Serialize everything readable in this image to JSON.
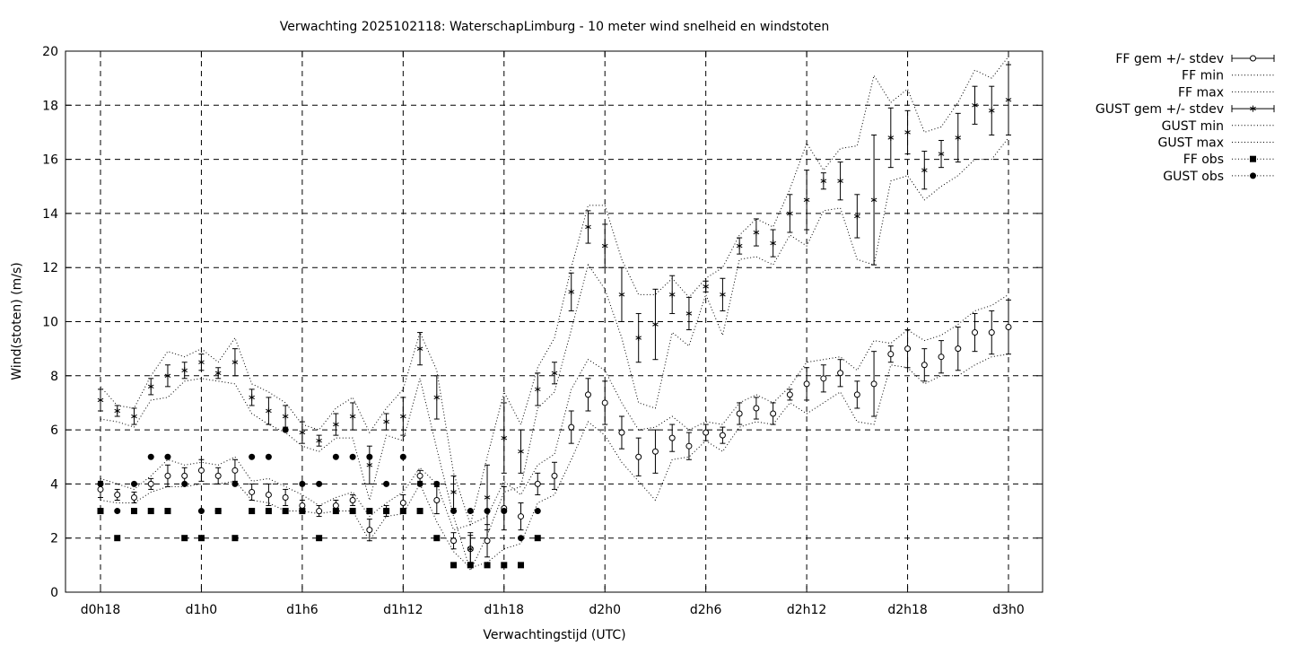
{
  "chart_data": {
    "type": "line",
    "title": "Verwachting 2025102118: WaterschapLimburg - 10 meter wind snelheid en windstoten",
    "xlabel": "Verwachtingstijd (UTC)",
    "ylabel": "Wind(stoten) (m/s)",
    "xlim": [
      18,
      75
    ],
    "ylim": [
      0,
      20
    ],
    "yticks": [
      0,
      2,
      4,
      6,
      8,
      10,
      12,
      14,
      16,
      18,
      20
    ],
    "xticks": [
      {
        "x": 18,
        "label": "d0h18"
      },
      {
        "x": 24,
        "label": "d1h0"
      },
      {
        "x": 30,
        "label": "d1h6"
      },
      {
        "x": 36,
        "label": "d1h12"
      },
      {
        "x": 42,
        "label": "d1h18"
      },
      {
        "x": 48,
        "label": "d2h0"
      },
      {
        "x": 54,
        "label": "d2h6"
      },
      {
        "x": 60,
        "label": "d2h12"
      },
      {
        "x": 66,
        "label": "d2h18"
      },
      {
        "x": 72,
        "label": "d3h0"
      }
    ],
    "grid": true,
    "legend_position": "outside-right",
    "legend": [
      {
        "label": "FF gem +/- stdev"
      },
      {
        "label": "FF min"
      },
      {
        "label": "FF max"
      },
      {
        "label": "GUST gem +/- stdev"
      },
      {
        "label": "GUST min"
      },
      {
        "label": "GUST max"
      },
      {
        "label": "FF obs"
      },
      {
        "label": "GUST obs"
      }
    ],
    "series": {
      "ff_mean": {
        "x": [
          18,
          19,
          20,
          21,
          22,
          23,
          24,
          25,
          26,
          27,
          28,
          29,
          30,
          31,
          32,
          33,
          34,
          35,
          36,
          37,
          38,
          39,
          40,
          41,
          42,
          43,
          44,
          45,
          46,
          47,
          48,
          49,
          50,
          51,
          52,
          53,
          54,
          55,
          56,
          57,
          58,
          59,
          60,
          61,
          62,
          63,
          64,
          65,
          66,
          67,
          68,
          69,
          70,
          71,
          72
        ],
        "mean": [
          3.8,
          3.6,
          3.5,
          4.0,
          4.3,
          4.3,
          4.5,
          4.3,
          4.5,
          3.7,
          3.6,
          3.5,
          3.2,
          3.0,
          3.2,
          3.4,
          2.3,
          3.0,
          3.3,
          4.3,
          3.4,
          1.9,
          1.6,
          1.9,
          3.1,
          2.8,
          4.0,
          4.3,
          6.1,
          7.3,
          7.0,
          5.9,
          5.0,
          5.2,
          5.7,
          5.4,
          5.9,
          5.8,
          6.6,
          6.8,
          6.6,
          7.3,
          7.7,
          7.9,
          8.1,
          7.3,
          7.7,
          8.8,
          9.0,
          8.4,
          8.7,
          9.0,
          9.6,
          9.6,
          9.8
        ],
        "stdev": [
          0.3,
          0.2,
          0.2,
          0.2,
          0.4,
          0.3,
          0.4,
          0.3,
          0.4,
          0.3,
          0.4,
          0.3,
          0.2,
          0.2,
          0.2,
          0.2,
          0.4,
          0.2,
          0.3,
          0.2,
          0.5,
          0.3,
          0.5,
          0.6,
          0.8,
          0.5,
          0.4,
          0.5,
          0.6,
          0.6,
          0.8,
          0.6,
          0.7,
          0.8,
          0.5,
          0.5,
          0.3,
          0.3,
          0.4,
          0.4,
          0.4,
          0.2,
          0.6,
          0.5,
          0.5,
          0.5,
          1.2,
          0.3,
          0.7,
          0.6,
          0.6,
          0.8,
          0.7,
          0.8,
          1.0
        ]
      },
      "ff_min": [
        3.4,
        3.3,
        3.3,
        3.7,
        3.9,
        3.9,
        4.0,
        4.0,
        4.1,
        3.4,
        3.3,
        3.0,
        3.0,
        2.9,
        3.0,
        3.0,
        1.9,
        2.8,
        2.9,
        4.0,
        2.6,
        1.5,
        0.9,
        1.1,
        1.6,
        1.8,
        3.3,
        3.6,
        4.9,
        6.3,
        5.8,
        4.8,
        4.1,
        3.4,
        4.9,
        5.0,
        5.6,
        5.2,
        6.1,
        6.3,
        6.2,
        7.0,
        6.6,
        7.0,
        7.4,
        6.3,
        6.2,
        8.4,
        8.3,
        7.7,
        8.0,
        8.0,
        8.4,
        8.7,
        8.8
      ],
      "ff_max": [
        4.2,
        4.0,
        3.8,
        4.3,
        4.9,
        4.7,
        4.8,
        4.7,
        5.0,
        4.1,
        4.2,
        3.9,
        3.6,
        3.2,
        3.5,
        3.7,
        2.8,
        3.3,
        3.7,
        4.6,
        4.0,
        2.3,
        2.5,
        2.8,
        4.1,
        3.6,
        4.7,
        5.1,
        7.5,
        8.6,
        8.2,
        7.0,
        6.0,
        6.1,
        6.5,
        6.0,
        6.3,
        6.2,
        7.0,
        7.3,
        7.0,
        7.6,
        8.5,
        8.6,
        8.7,
        8.2,
        9.3,
        9.2,
        9.7,
        9.3,
        9.5,
        9.9,
        10.4,
        10.6,
        11.0
      ],
      "gust_mean": {
        "x": [
          18,
          19,
          20,
          21,
          22,
          23,
          24,
          25,
          26,
          27,
          28,
          29,
          30,
          31,
          32,
          33,
          34,
          35,
          36,
          37,
          38,
          39,
          40,
          41,
          42,
          43,
          44,
          45,
          46,
          47,
          48,
          49,
          50,
          51,
          52,
          53,
          54,
          55,
          56,
          57,
          58,
          59,
          60,
          61,
          62,
          63,
          64,
          65,
          66,
          67,
          68,
          69,
          70,
          71,
          72
        ],
        "mean": [
          7.1,
          6.7,
          6.5,
          7.6,
          8.0,
          8.2,
          8.5,
          8.1,
          8.5,
          7.2,
          6.7,
          6.5,
          5.9,
          5.6,
          6.2,
          6.5,
          4.7,
          6.3,
          6.5,
          9.0,
          7.2,
          3.7,
          1.6,
          3.5,
          5.7,
          5.2,
          7.5,
          8.1,
          11.1,
          13.5,
          12.8,
          11.0,
          9.4,
          9.9,
          11.0,
          10.3,
          11.3,
          11.0,
          12.8,
          13.3,
          12.9,
          14.0,
          14.5,
          15.2,
          15.2,
          13.9,
          14.5,
          16.8,
          17.0,
          15.6,
          16.2,
          16.8,
          18.0,
          17.8,
          18.2
        ],
        "stdev": [
          0.4,
          0.2,
          0.3,
          0.3,
          0.4,
          0.3,
          0.3,
          0.2,
          0.5,
          0.3,
          0.5,
          0.4,
          0.4,
          0.2,
          0.4,
          0.5,
          0.7,
          0.3,
          0.7,
          0.6,
          0.8,
          0.6,
          0.6,
          1.2,
          1.3,
          0.8,
          0.6,
          0.4,
          0.7,
          0.6,
          0.8,
          1.0,
          0.9,
          1.3,
          0.7,
          0.6,
          0.2,
          0.6,
          0.3,
          0.5,
          0.5,
          0.7,
          1.1,
          0.3,
          0.7,
          0.8,
          2.4,
          1.1,
          0.8,
          0.7,
          0.5,
          0.9,
          0.7,
          0.9,
          1.3
        ]
      },
      "gust_min": [
        6.4,
        6.3,
        6.1,
        7.1,
        7.2,
        7.8,
        7.9,
        7.8,
        7.7,
        6.6,
        6.2,
        5.9,
        5.4,
        5.2,
        5.7,
        5.7,
        3.4,
        5.8,
        5.6,
        7.9,
        5.3,
        2.8,
        0.8,
        2.1,
        3.7,
        3.9,
        6.8,
        7.4,
        9.7,
        12.1,
        11.2,
        9.4,
        7.0,
        6.8,
        9.6,
        9.1,
        11.0,
        9.5,
        12.3,
        12.4,
        12.1,
        13.2,
        12.8,
        14.1,
        14.2,
        12.3,
        12.1,
        15.2,
        15.4,
        14.5,
        15.0,
        15.4,
        16.0,
        16.0,
        16.8
      ],
      "gust_max": [
        7.6,
        6.9,
        6.8,
        8.0,
        8.9,
        8.7,
        9.0,
        8.5,
        9.4,
        7.7,
        7.4,
        7.0,
        6.2,
        6.0,
        6.8,
        7.2,
        5.9,
        6.8,
        7.5,
        9.6,
        8.2,
        4.4,
        2.5,
        5.0,
        7.4,
        6.2,
        8.3,
        9.4,
        12.0,
        14.3,
        14.3,
        12.3,
        11.0,
        11.0,
        11.6,
        10.9,
        11.6,
        12.0,
        13.2,
        13.8,
        13.5,
        14.9,
        16.6,
        15.6,
        16.4,
        16.5,
        19.1,
        18.1,
        18.6,
        17.0,
        17.2,
        18.1,
        19.3,
        19.0,
        19.8
      ],
      "ff_obs": {
        "x": [
          18,
          19,
          20,
          21,
          22,
          23,
          24,
          25,
          26,
          27,
          28,
          29,
          30,
          31,
          32,
          33,
          34,
          35,
          36,
          37,
          38,
          39,
          40,
          41,
          42,
          43,
          44
        ],
        "y": [
          3,
          2,
          3,
          3,
          3,
          2,
          2,
          3,
          2,
          3,
          3,
          3,
          3,
          2,
          3,
          3,
          3,
          3,
          3,
          3,
          2,
          1,
          1,
          1,
          1,
          1,
          2
        ]
      },
      "gust_obs": {
        "x": [
          18,
          19,
          20,
          21,
          22,
          23,
          24,
          25,
          26,
          27,
          28,
          29,
          30,
          31,
          32,
          33,
          34,
          35,
          36,
          37,
          38,
          39,
          40,
          41,
          42,
          43,
          44
        ],
        "y": [
          4,
          3,
          4,
          5,
          5,
          4,
          3,
          3,
          4,
          5,
          5,
          6,
          4,
          4,
          5,
          5,
          5,
          4,
          5,
          4,
          4,
          3,
          3,
          3,
          3,
          2,
          3
        ]
      }
    }
  }
}
